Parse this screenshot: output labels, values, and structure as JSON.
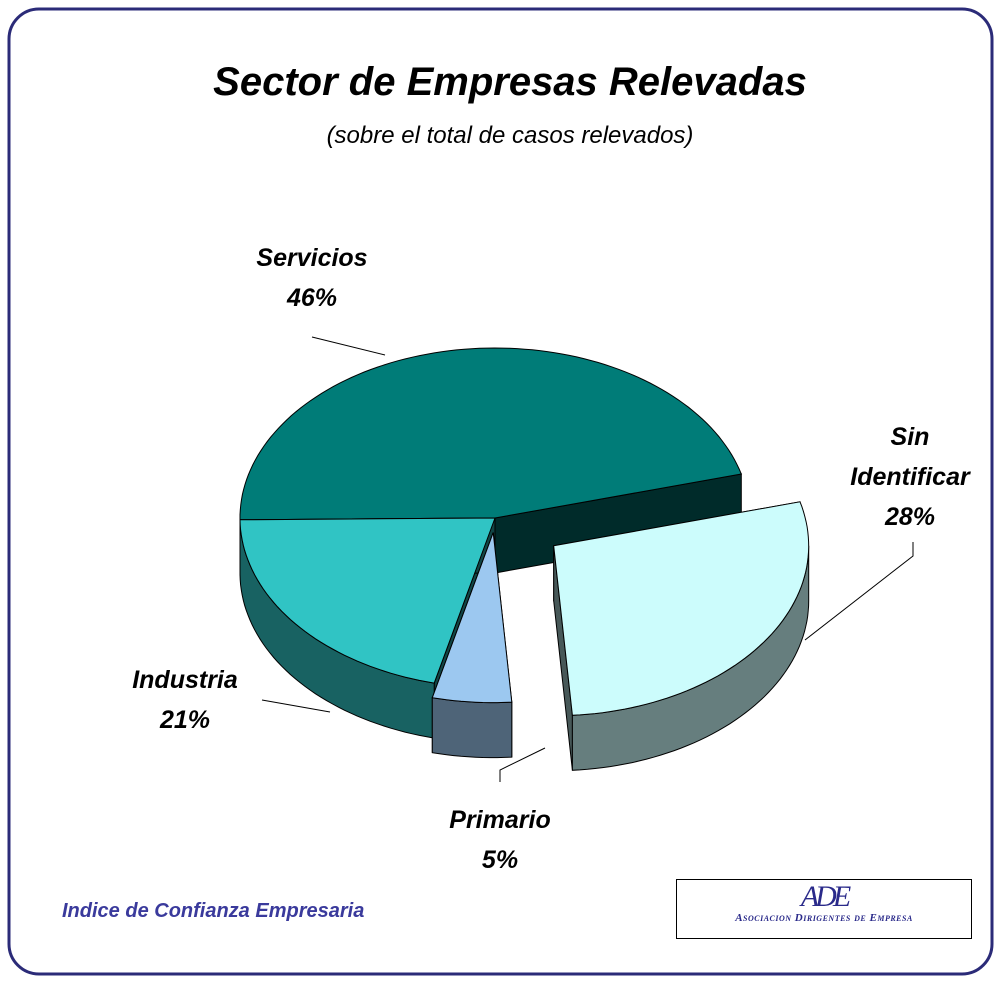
{
  "chart_data": {
    "type": "pie3d",
    "title": "Sector de Empresas Relevadas",
    "subtitle": "(sobre el total de casos relevados)",
    "categories": [
      "Servicios",
      "Sin Identificar",
      "Primario",
      "Industria"
    ],
    "values": [
      46,
      28,
      5,
      21
    ],
    "value_labels": [
      "46%",
      "28%",
      "5%",
      "21%"
    ],
    "colors": [
      "#007c78",
      "#ccfcfc",
      "#9cc8f0",
      "#30c4c4"
    ]
  },
  "footer": "Indice de Confianza Empresaria",
  "logo": {
    "mark": "ADE",
    "text": "Asociacion Dirigentes de Empresa"
  }
}
